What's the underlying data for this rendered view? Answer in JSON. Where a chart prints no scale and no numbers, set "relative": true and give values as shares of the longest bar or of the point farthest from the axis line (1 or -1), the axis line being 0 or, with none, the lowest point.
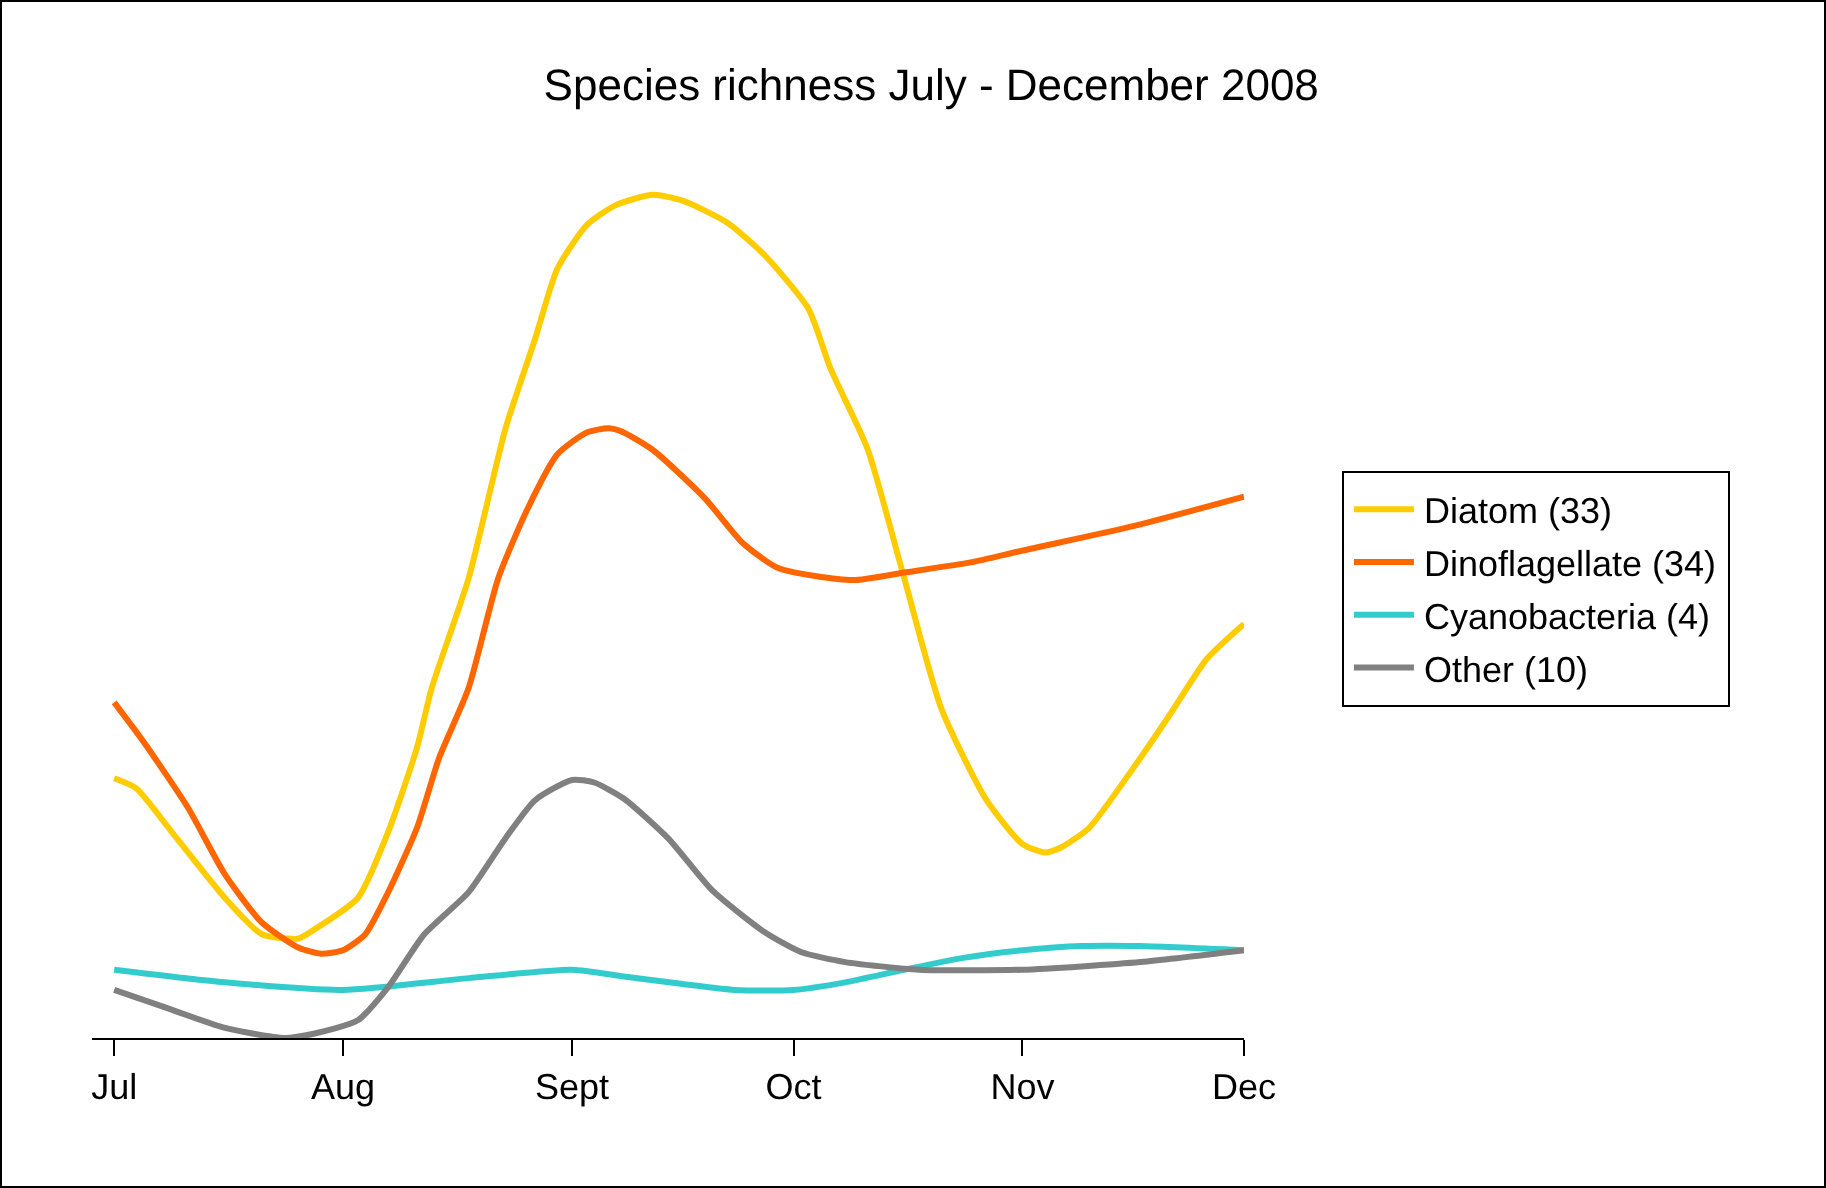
{
  "chart_data": {
    "type": "line",
    "title": "Species richness July - December 2008",
    "relative": true,
    "xlim": [
      "2008-06-28",
      "2008-12-01"
    ],
    "xticks": [
      {
        "value": "2008-07-01",
        "label": "Jul"
      },
      {
        "value": "2008-08-01",
        "label": "Aug"
      },
      {
        "value": "2008-09-01",
        "label": "Sept"
      },
      {
        "value": "2008-10-01",
        "label": "Oct"
      },
      {
        "value": "2008-11-01",
        "label": "Nov"
      },
      {
        "value": "2008-12-01",
        "label": "Dec"
      }
    ],
    "grid": false,
    "legend": "right",
    "marker": "none",
    "line_style": "solid",
    "series": [
      {
        "name": "Diatom (33)",
        "color": "#ffcc00",
        "x": [
          "2008-07-01",
          "2008-07-04",
          "2008-07-09",
          "2008-07-16",
          "2008-07-21",
          "2008-07-26",
          "2008-07-28",
          "2008-08-03",
          "2008-08-07",
          "2008-08-11",
          "2008-08-13",
          "2008-08-18",
          "2008-08-23",
          "2008-08-27",
          "2008-08-30",
          "2008-09-03",
          "2008-09-07",
          "2008-09-12",
          "2008-09-16",
          "2008-09-22",
          "2008-09-27",
          "2008-10-03",
          "2008-10-06",
          "2008-10-11",
          "2008-10-16",
          "2008-10-21",
          "2008-10-27",
          "2008-11-01",
          "2008-11-04",
          "2008-11-06",
          "2008-11-10",
          "2008-11-16",
          "2008-11-21",
          "2008-11-26",
          "2008-12-01"
        ],
        "values": [
          0.308,
          0.296,
          0.242,
          0.166,
          0.123,
          0.118,
          0.128,
          0.166,
          0.242,
          0.344,
          0.415,
          0.545,
          0.723,
          0.829,
          0.912,
          0.964,
          0.988,
          1,
          0.993,
          0.967,
          0.929,
          0.865,
          0.794,
          0.699,
          0.545,
          0.391,
          0.284,
          0.23,
          0.22,
          0.225,
          0.249,
          0.32,
          0.384,
          0.45,
          0.491
        ]
      },
      {
        "name": "Dinoflagellate (34)",
        "color": "#ff6600",
        "x": [
          "2008-07-01",
          "2008-07-05",
          "2008-07-11",
          "2008-07-16",
          "2008-07-21",
          "2008-07-26",
          "2008-07-29",
          "2008-08-01",
          "2008-08-04",
          "2008-08-07",
          "2008-08-11",
          "2008-08-14",
          "2008-08-18",
          "2008-08-22",
          "2008-08-26",
          "2008-08-30",
          "2008-09-03",
          "2008-09-06",
          "2008-09-08",
          "2008-09-12",
          "2008-09-19",
          "2008-09-24",
          "2008-09-29",
          "2008-10-09",
          "2008-10-16",
          "2008-10-25",
          "2008-11-01",
          "2008-11-16",
          "2008-12-01"
        ],
        "values": [
          0.398,
          0.351,
          0.273,
          0.194,
          0.137,
          0.107,
          0.1,
          0.104,
          0.123,
          0.171,
          0.249,
          0.332,
          0.415,
          0.545,
          0.628,
          0.692,
          0.718,
          0.723,
          0.718,
          0.697,
          0.64,
          0.588,
          0.557,
          0.543,
          0.552,
          0.564,
          0.578,
          0.607,
          0.642
        ]
      },
      {
        "name": "Cyanobacteria (4)",
        "color": "#33cccc",
        "x": [
          "2008-07-01",
          "2008-07-16",
          "2008-08-01",
          "2008-08-18",
          "2008-09-01",
          "2008-09-08",
          "2008-09-16",
          "2008-09-23",
          "2008-10-01",
          "2008-10-08",
          "2008-10-16",
          "2008-10-24",
          "2008-11-01",
          "2008-11-09",
          "2008-11-17",
          "2008-12-01"
        ],
        "values": [
          0.081,
          0.066,
          0.057,
          0.071,
          0.081,
          0.073,
          0.064,
          0.057,
          0.057,
          0.066,
          0.081,
          0.095,
          0.104,
          0.109,
          0.109,
          0.104
        ]
      },
      {
        "name": "Other (10)",
        "color": "#808080",
        "x": [
          "2008-07-01",
          "2008-07-08",
          "2008-07-16",
          "2008-07-24",
          "2008-07-28",
          "2008-08-03",
          "2008-08-07",
          "2008-08-12",
          "2008-08-18",
          "2008-08-23",
          "2008-08-27",
          "2008-09-01",
          "2008-09-04",
          "2008-09-08",
          "2008-09-14",
          "2008-09-20",
          "2008-09-27",
          "2008-10-02",
          "2008-10-08",
          "2008-10-18",
          "2008-11-01",
          "2008-11-17",
          "2008-12-01"
        ],
        "values": [
          0.057,
          0.036,
          0.012,
          0,
          0.005,
          0.021,
          0.059,
          0.123,
          0.173,
          0.237,
          0.282,
          0.306,
          0.303,
          0.284,
          0.237,
          0.175,
          0.126,
          0.102,
          0.09,
          0.081,
          0.081,
          0.09,
          0.104
        ]
      }
    ]
  }
}
